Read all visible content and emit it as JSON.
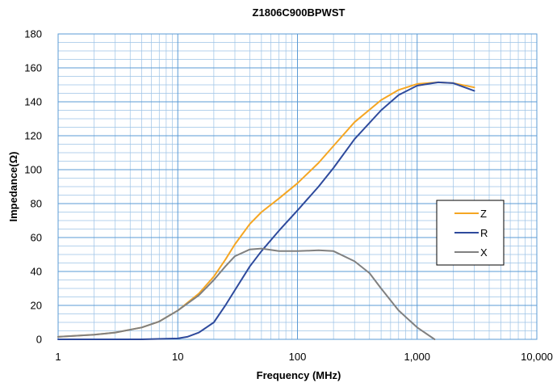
{
  "chart_data": {
    "type": "line",
    "title": "Z1806C900BPWST",
    "xlabel": "Frequency (MHz)",
    "ylabel": "Impedance(Ω)",
    "xscale": "log",
    "xlim": [
      1,
      10000
    ],
    "ylim": [
      0,
      180
    ],
    "yticks": [
      0,
      20,
      40,
      60,
      80,
      100,
      120,
      140,
      160,
      180
    ],
    "xticks": [
      1,
      10,
      100,
      1000,
      10000
    ],
    "xtick_labels": [
      "1",
      "10",
      "100",
      "1,000",
      "10,000"
    ],
    "grid": true,
    "legend_position": "right",
    "series": [
      {
        "name": "Z",
        "color": "#F5A623",
        "x": [
          1,
          2,
          3,
          5,
          7,
          10,
          15,
          20,
          25,
          30,
          40,
          50,
          70,
          100,
          150,
          200,
          300,
          500,
          700,
          1000,
          1500,
          2000,
          3000
        ],
        "y": [
          1.5,
          2.7,
          4,
          7,
          10.5,
          17,
          27,
          37,
          47,
          56,
          68,
          75,
          83,
          92,
          104,
          114,
          128,
          141,
          147,
          150.5,
          151.5,
          151,
          148.5
        ]
      },
      {
        "name": "R",
        "color": "#2E4A9C",
        "x": [
          1,
          5,
          10,
          12,
          15,
          20,
          25,
          30,
          40,
          50,
          70,
          100,
          150,
          200,
          300,
          500,
          700,
          1000,
          1500,
          2000,
          3000
        ],
        "y": [
          0,
          0,
          0.5,
          1.5,
          4,
          10,
          20,
          29,
          43,
          52,
          64,
          76,
          90,
          101,
          118,
          135,
          144,
          149.5,
          151.5,
          151,
          146.5
        ]
      },
      {
        "name": "X",
        "color": "#808080",
        "x": [
          1,
          2,
          3,
          5,
          7,
          10,
          15,
          20,
          25,
          30,
          40,
          50,
          70,
          100,
          150,
          200,
          300,
          400,
          500,
          700,
          1000,
          1400
        ],
        "y": [
          1.5,
          2.7,
          4,
          7,
          10.5,
          17,
          26,
          35,
          43,
          49,
          53,
          53.5,
          52,
          52,
          52.5,
          52,
          46,
          39,
          30,
          17,
          7,
          0
        ]
      }
    ]
  }
}
